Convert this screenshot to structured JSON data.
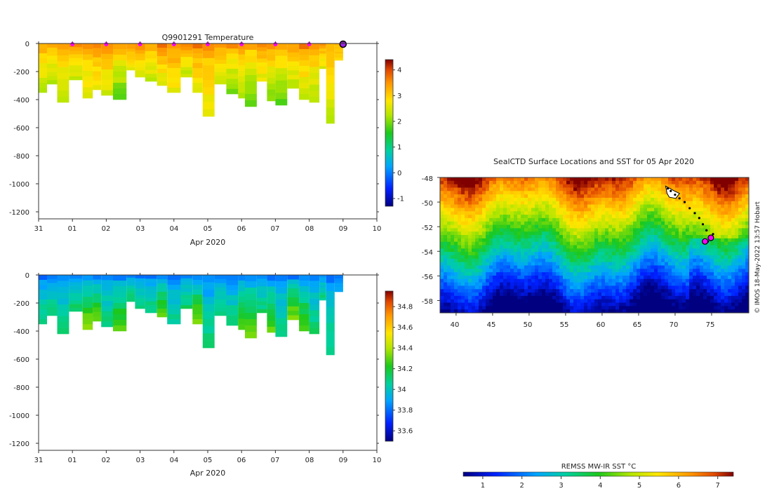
{
  "chart_data": [
    {
      "type": "heatmap",
      "name": "temperature-section",
      "title": "Q9901291  Temperature",
      "xlabel": "Apr 2020",
      "ylabel": "",
      "x_tick_labels": [
        "31",
        "01",
        "02",
        "03",
        "04",
        "05",
        "06",
        "07",
        "08",
        "09",
        "10"
      ],
      "x_range_days": [
        0,
        10
      ],
      "y_ticks": [
        0,
        -200,
        -400,
        -600,
        -800,
        -1000,
        -1200
      ],
      "ylim": [
        -1250,
        0
      ],
      "colorbar": {
        "range": [
          -1.3,
          4.4
        ],
        "ticks": [
          -1,
          0,
          1,
          2,
          3,
          4
        ]
      },
      "surface_markers_days": [
        1,
        2,
        3,
        4,
        5,
        6,
        7,
        8
      ],
      "latest_profile_day": 9,
      "profiles": [
        {
          "day": 0.0,
          "depth": 350,
          "surface": 3.4,
          "deep": 2.3
        },
        {
          "day": 0.25,
          "depth": 290,
          "surface": 3.4,
          "deep": 2.2
        },
        {
          "day": 0.55,
          "depth": 420,
          "surface": 3.3,
          "deep": 2.3
        },
        {
          "day": 0.9,
          "depth": 260,
          "surface": 3.5,
          "deep": 2.4
        },
        {
          "day": 1.3,
          "depth": 390,
          "surface": 3.4,
          "deep": 2.5
        },
        {
          "day": 1.6,
          "depth": 330,
          "surface": 3.6,
          "deep": 2.6
        },
        {
          "day": 1.85,
          "depth": 370,
          "surface": 3.5,
          "deep": 2.5
        },
        {
          "day": 2.2,
          "depth": 400,
          "surface": 3.4,
          "deep": 1.8
        },
        {
          "day": 2.6,
          "depth": 190,
          "surface": 3.5,
          "deep": 2.6
        },
        {
          "day": 2.85,
          "depth": 240,
          "surface": 3.6,
          "deep": 2.5
        },
        {
          "day": 3.15,
          "depth": 270,
          "surface": 3.4,
          "deep": 2.4
        },
        {
          "day": 3.5,
          "depth": 300,
          "surface": 3.7,
          "deep": 2.5
        },
        {
          "day": 3.8,
          "depth": 350,
          "surface": 3.5,
          "deep": 2.7
        },
        {
          "day": 4.2,
          "depth": 240,
          "surface": 3.6,
          "deep": 2.3
        },
        {
          "day": 4.55,
          "depth": 350,
          "surface": 3.7,
          "deep": 2.6
        },
        {
          "day": 4.85,
          "depth": 520,
          "surface": 3.4,
          "deep": 2.6
        },
        {
          "day": 5.2,
          "depth": 290,
          "surface": 3.5,
          "deep": 2.5
        },
        {
          "day": 5.55,
          "depth": 360,
          "surface": 3.6,
          "deep": 1.9
        },
        {
          "day": 5.9,
          "depth": 390,
          "surface": 3.4,
          "deep": 2.3
        },
        {
          "day": 6.1,
          "depth": 450,
          "surface": 3.3,
          "deep": 1.8
        },
        {
          "day": 6.45,
          "depth": 270,
          "surface": 3.5,
          "deep": 2.6
        },
        {
          "day": 6.75,
          "depth": 410,
          "surface": 3.6,
          "deep": 2.0
        },
        {
          "day": 7.0,
          "depth": 440,
          "surface": 3.4,
          "deep": 1.9
        },
        {
          "day": 7.35,
          "depth": 320,
          "surface": 3.5,
          "deep": 2.3
        },
        {
          "day": 7.7,
          "depth": 400,
          "surface": 3.6,
          "deep": 2.4
        },
        {
          "day": 8.0,
          "depth": 420,
          "surface": 3.5,
          "deep": 2.2
        },
        {
          "day": 8.3,
          "depth": 180,
          "surface": 3.5,
          "deep": 2.6
        },
        {
          "day": 8.5,
          "depth": 570,
          "surface": 3.3,
          "deep": 2.4
        },
        {
          "day": 8.75,
          "depth": 120,
          "surface": 3.3,
          "deep": 2.9
        }
      ]
    },
    {
      "type": "heatmap",
      "name": "salinity-section",
      "title": "",
      "xlabel": "Apr 2020",
      "ylabel": "",
      "x_tick_labels": [
        "31",
        "01",
        "02",
        "03",
        "04",
        "05",
        "06",
        "07",
        "08",
        "09",
        "10"
      ],
      "x_range_days": [
        0,
        10
      ],
      "y_ticks": [
        0,
        -200,
        -400,
        -600,
        -800,
        -1000,
        -1200
      ],
      "ylim": [
        -1250,
        0
      ],
      "colorbar": {
        "range": [
          33.5,
          34.95
        ],
        "ticks": [
          33.6,
          33.8,
          34,
          34.2,
          34.4,
          34.6,
          34.8
        ]
      },
      "profiles": [
        {
          "day": 0.0,
          "depth": 350,
          "surface": 33.82,
          "deep": 34.12
        },
        {
          "day": 0.25,
          "depth": 290,
          "surface": 33.84,
          "deep": 34.1
        },
        {
          "day": 0.55,
          "depth": 420,
          "surface": 33.83,
          "deep": 34.12
        },
        {
          "day": 0.9,
          "depth": 260,
          "surface": 33.82,
          "deep": 34.14
        },
        {
          "day": 1.3,
          "depth": 390,
          "surface": 33.84,
          "deep": 34.35
        },
        {
          "day": 1.6,
          "depth": 330,
          "surface": 33.82,
          "deep": 34.3
        },
        {
          "day": 1.85,
          "depth": 370,
          "surface": 33.84,
          "deep": 34.12
        },
        {
          "day": 2.2,
          "depth": 400,
          "surface": 33.83,
          "deep": 34.3
        },
        {
          "day": 2.6,
          "depth": 190,
          "surface": 33.85,
          "deep": 34.12
        },
        {
          "day": 2.85,
          "depth": 240,
          "surface": 33.82,
          "deep": 34.1
        },
        {
          "day": 3.15,
          "depth": 270,
          "surface": 33.84,
          "deep": 34.12
        },
        {
          "day": 3.5,
          "depth": 300,
          "surface": 33.83,
          "deep": 34.3
        },
        {
          "day": 3.8,
          "depth": 350,
          "surface": 33.82,
          "deep": 34.08
        },
        {
          "day": 4.2,
          "depth": 240,
          "surface": 33.84,
          "deep": 34.12
        },
        {
          "day": 4.55,
          "depth": 350,
          "surface": 33.83,
          "deep": 34.35
        },
        {
          "day": 4.85,
          "depth": 520,
          "surface": 33.82,
          "deep": 34.12
        },
        {
          "day": 5.2,
          "depth": 290,
          "surface": 33.84,
          "deep": 34.12
        },
        {
          "day": 5.55,
          "depth": 360,
          "surface": 33.83,
          "deep": 34.1
        },
        {
          "day": 5.9,
          "depth": 390,
          "surface": 33.82,
          "deep": 34.3
        },
        {
          "day": 6.1,
          "depth": 450,
          "surface": 33.84,
          "deep": 34.32
        },
        {
          "day": 6.45,
          "depth": 270,
          "surface": 33.83,
          "deep": 34.12
        },
        {
          "day": 6.75,
          "depth": 410,
          "surface": 33.82,
          "deep": 34.3
        },
        {
          "day": 7.0,
          "depth": 440,
          "surface": 33.84,
          "deep": 34.12
        },
        {
          "day": 7.35,
          "depth": 320,
          "surface": 33.83,
          "deep": 34.35
        },
        {
          "day": 7.7,
          "depth": 400,
          "surface": 33.82,
          "deep": 34.3
        },
        {
          "day": 8.0,
          "depth": 420,
          "surface": 33.84,
          "deep": 34.12
        },
        {
          "day": 8.3,
          "depth": 180,
          "surface": 33.85,
          "deep": 34.1
        },
        {
          "day": 8.5,
          "depth": 570,
          "surface": 33.83,
          "deep": 34.12
        },
        {
          "day": 8.75,
          "depth": 120,
          "surface": 33.84,
          "deep": 33.9
        }
      ]
    },
    {
      "type": "heatmap",
      "name": "sst-map",
      "title": "SealCTD Surface Locations and SST for 05 Apr 2020",
      "x_tick_labels": [
        "40",
        "45",
        "50",
        "55",
        "60",
        "65",
        "70",
        "75"
      ],
      "x_ticks": [
        40,
        45,
        50,
        55,
        60,
        65,
        70,
        75
      ],
      "y_tick_labels": [
        "-48",
        "-50",
        "-52",
        "-54",
        "-56",
        "-58"
      ],
      "y_ticks": [
        -48,
        -50,
        -52,
        -54,
        -56,
        -58
      ],
      "xlim": [
        37.8,
        80.1
      ],
      "ylim": [
        -59.0,
        -48.0
      ],
      "colorbar": {
        "label": "REMSS MW-IR SST °C",
        "range": [
          0.5,
          7.4
        ],
        "ticks": [
          1,
          2,
          3,
          4,
          5,
          6,
          7
        ],
        "tick_labels": [
          "1",
          "2",
          "3",
          "4",
          "5",
          "6",
          "7"
        ]
      },
      "track": [
        {
          "lon": 69.0,
          "lat": -48.9
        },
        {
          "lon": 69.4,
          "lat": -49.1
        },
        {
          "lon": 70.0,
          "lat": -49.4
        },
        {
          "lon": 70.6,
          "lat": -49.7
        },
        {
          "lon": 71.3,
          "lat": -50.0
        },
        {
          "lon": 72.0,
          "lat": -50.5
        },
        {
          "lon": 72.7,
          "lat": -50.9
        },
        {
          "lon": 73.3,
          "lat": -51.3
        },
        {
          "lon": 73.8,
          "lat": -51.8
        },
        {
          "lon": 74.3,
          "lat": -52.3
        },
        {
          "lon": 74.8,
          "lat": -52.8
        },
        {
          "lon": 75.2,
          "lat": -52.6
        },
        {
          "lon": 75.0,
          "lat": -53.0
        },
        {
          "lon": 74.5,
          "lat": -53.2
        },
        {
          "lon": 74.0,
          "lat": -53.1
        }
      ],
      "surface_locations": [
        {
          "lon": 74.1,
          "lat": -53.2
        },
        {
          "lon": 74.9,
          "lat": -52.9
        }
      ]
    }
  ],
  "map_credit": "© IMOS 18-May-2022 13:57 Hobart"
}
